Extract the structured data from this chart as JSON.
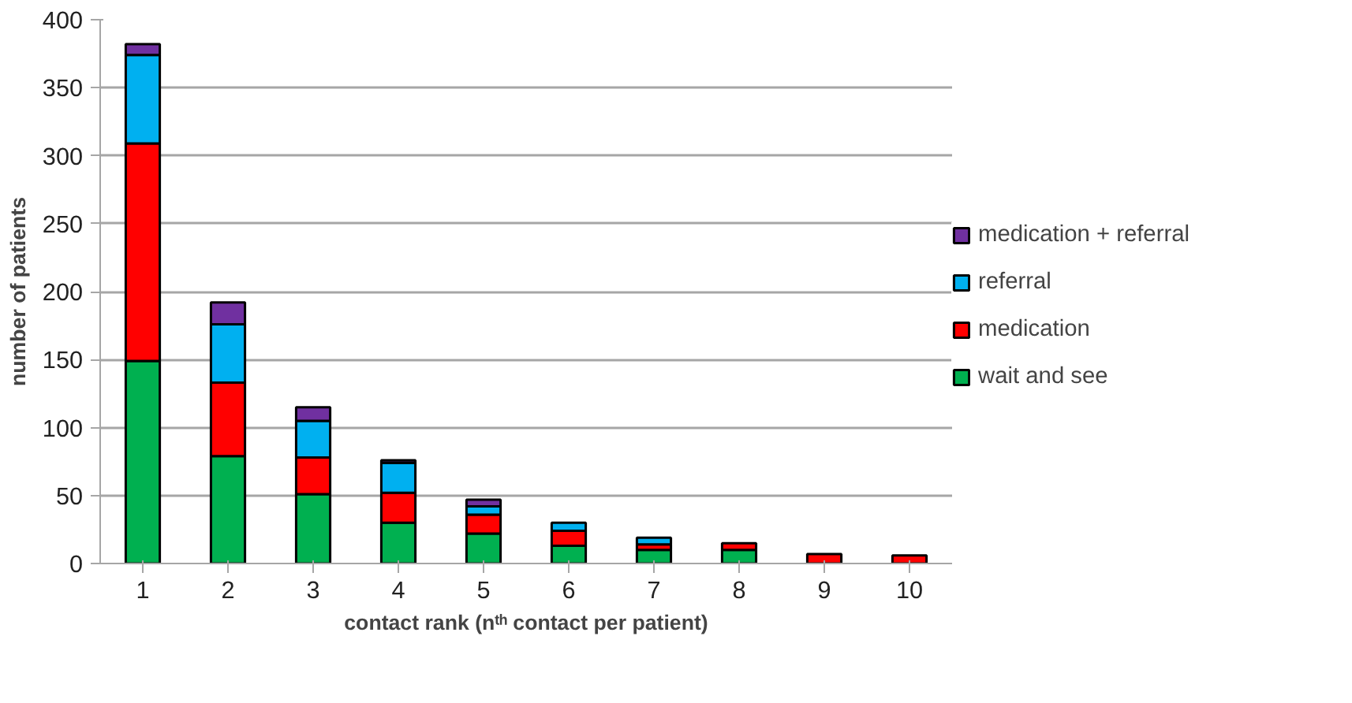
{
  "chart_data": {
    "type": "bar",
    "stacked": true,
    "xlabel": "contact rank (nᵗʰ contact per patient)",
    "ylabel": "number of patients",
    "categories": [
      "1",
      "2",
      "3",
      "4",
      "5",
      "6",
      "7",
      "8",
      "9",
      "10"
    ],
    "series": [
      {
        "name": "wait and see",
        "color": "#00b050",
        "values": [
          149,
          79,
          51,
          30,
          22,
          13,
          10,
          10,
          null,
          0
        ]
      },
      {
        "name": "medication",
        "color": "#ff0000",
        "values": [
          160,
          54,
          27,
          22,
          14,
          11,
          4,
          5,
          7,
          6
        ]
      },
      {
        "name": "referral",
        "color": "#00b0f0",
        "values": [
          65,
          43,
          27,
          22,
          6,
          6,
          5,
          null,
          0,
          null
        ]
      },
      {
        "name": "medication + referral",
        "color": "#7030a0",
        "values": [
          8,
          16,
          10,
          2,
          5,
          null,
          null,
          0,
          null,
          0
        ]
      }
    ],
    "ylim": [
      0,
      400
    ],
    "yticks": [
      0,
      50,
      100,
      150,
      200,
      250,
      300,
      350,
      400
    ],
    "grid": "y",
    "legend": "right"
  }
}
